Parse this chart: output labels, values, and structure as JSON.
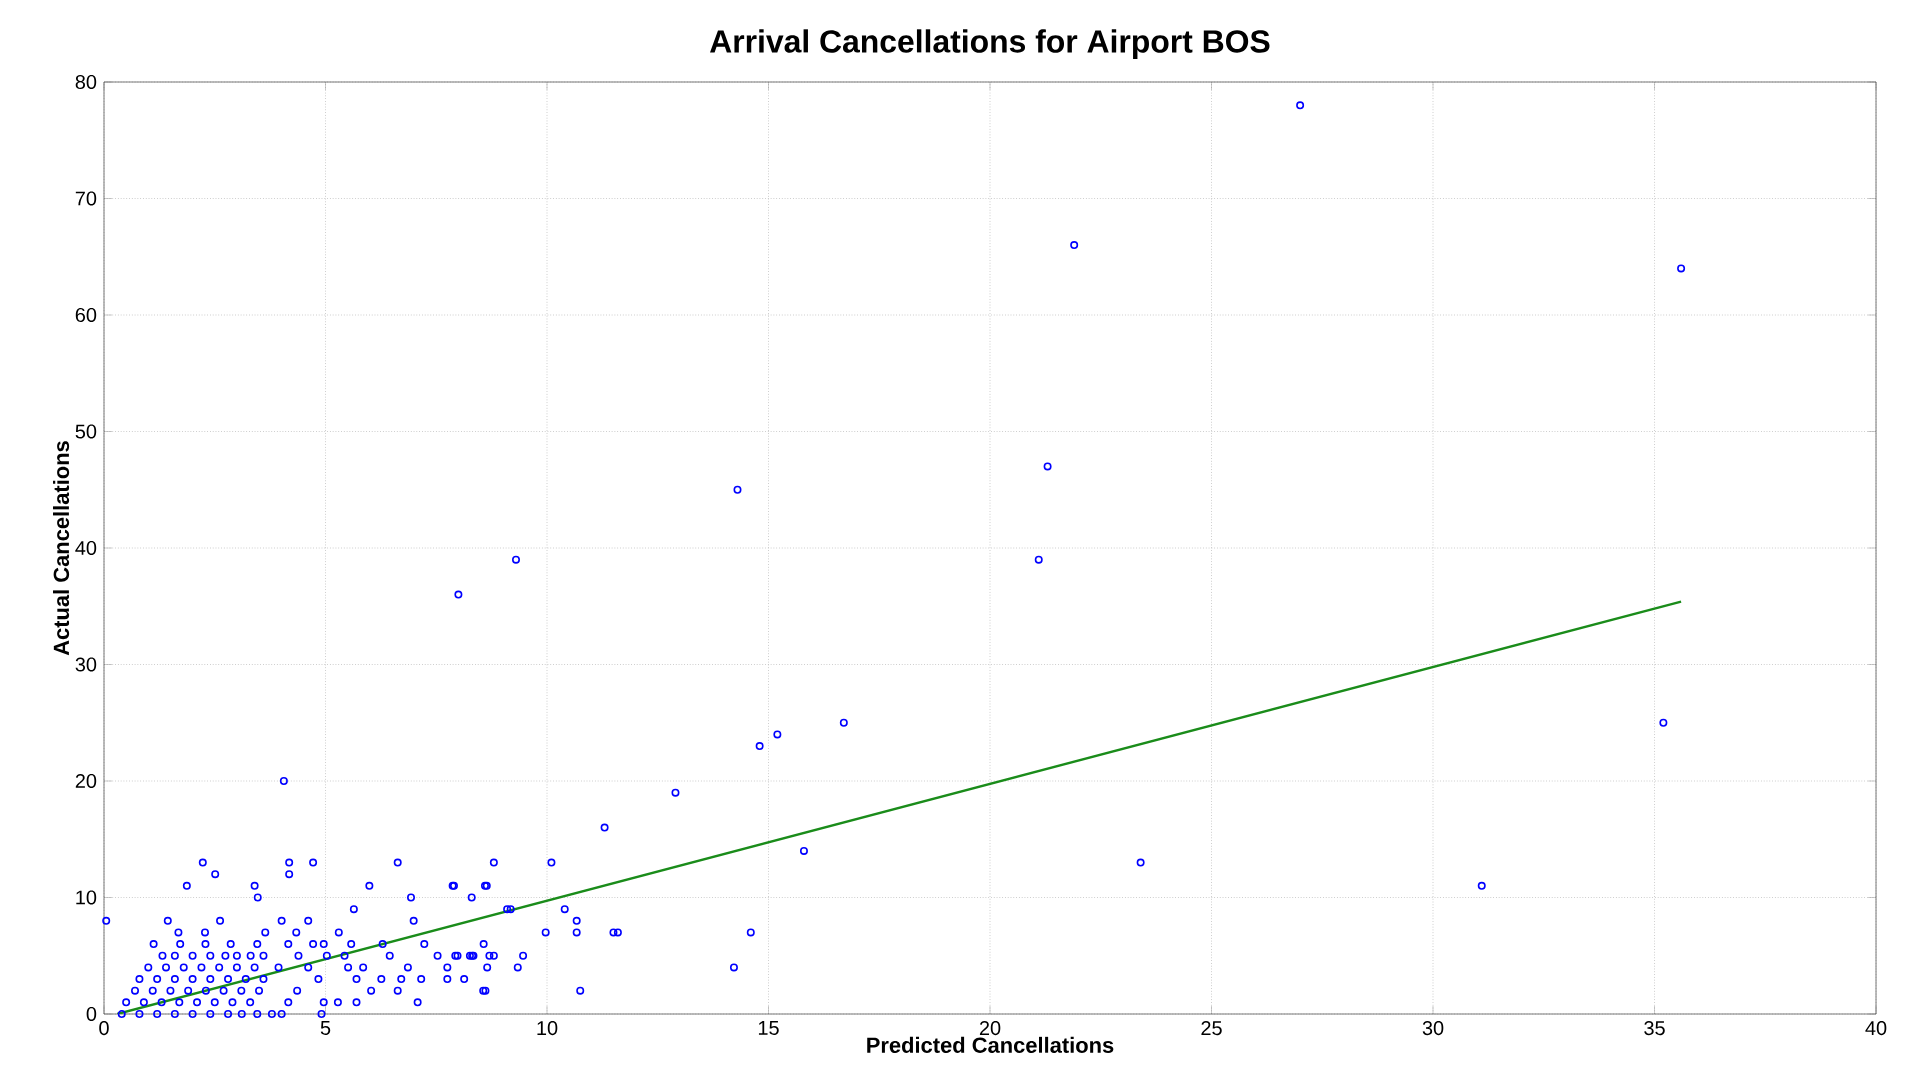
{
  "chart_data": {
    "type": "scatter",
    "title": "Arrival Cancellations for Airport BOS",
    "xlabel": "Predicted Cancellations",
    "ylabel": "Actual Cancellations",
    "xlim": [
      0,
      40
    ],
    "ylim": [
      0,
      80
    ],
    "xticks": [
      0,
      5,
      10,
      15,
      20,
      25,
      30,
      35,
      40
    ],
    "yticks": [
      0,
      10,
      20,
      30,
      40,
      50,
      60,
      70,
      80
    ],
    "grid": true,
    "series": [
      {
        "marker": "circle",
        "color": "#0000ff",
        "x": [
          27.0,
          21.9,
          35.6,
          21.3,
          21.1,
          35.2,
          23.4,
          31.1,
          14.3,
          9.3,
          8.0,
          16.7,
          15.2,
          14.8,
          12.9,
          11.3,
          15.8,
          8.8,
          10.1,
          8.6,
          8.3,
          9.1,
          10.4,
          10.67,
          10.67,
          9.97,
          11.5,
          11.6,
          14.6,
          8.57,
          7.93,
          8.26,
          8.34,
          8.7,
          8.8,
          9.46,
          9.34,
          14.22,
          8.56,
          10.75,
          7.9,
          4.06,
          0.05,
          2.23,
          2.51,
          1.87,
          3.4,
          3.47,
          4.18,
          4.18,
          4.72,
          6.63,
          5.99,
          5.64,
          6.93,
          6.99,
          7.87,
          8.64,
          9.18,
          1.44,
          2.62,
          4.01,
          4.61,
          1.68,
          2.28,
          3.64,
          4.34,
          5.3,
          1.12,
          1.72,
          2.29,
          2.86,
          3.46,
          4.16,
          4.72,
          4.96,
          5.58,
          6.29,
          7.23,
          1.32,
          2.74,
          3.31,
          4.39,
          5.03,
          5.43,
          6.45,
          7.53,
          7.98,
          8.31,
          3.94,
          4.61,
          5.51,
          5.85,
          6.86,
          7.75,
          8.65,
          4.84,
          5.7,
          6.26,
          6.71,
          7.16,
          7.75,
          8.13,
          4.36,
          6.03,
          6.63,
          8.61,
          4.16,
          4.96,
          5.28,
          5.7,
          7.08,
          3.11,
          3.46,
          3.79,
          4.01,
          4.91,
          0.4,
          0.8,
          1.2,
          1.6,
          2.0,
          2.4,
          2.8,
          0.5,
          0.9,
          1.3,
          1.7,
          2.1,
          2.5,
          2.9,
          3.3,
          0.7,
          1.1,
          1.5,
          1.9,
          2.3,
          2.7,
          3.1,
          3.5,
          0.8,
          1.2,
          1.6,
          2.0,
          2.4,
          2.8,
          3.2,
          3.6,
          1.0,
          1.4,
          1.8,
          2.2,
          2.6,
          3.0,
          3.4,
          1.6,
          2.0,
          2.4,
          3.0,
          3.6
        ],
        "values": [
          78,
          66,
          64,
          47,
          39,
          25,
          13,
          11,
          45,
          39,
          36,
          25,
          24,
          23,
          19,
          16,
          14,
          13,
          13,
          11,
          10,
          9,
          9,
          8,
          7,
          7,
          7,
          7,
          7,
          6,
          5,
          5,
          5,
          5,
          5,
          5,
          4,
          4,
          2,
          2,
          11,
          20,
          8,
          13,
          12,
          11,
          11,
          10,
          13,
          12,
          13,
          13,
          11,
          9,
          10,
          8,
          11,
          11,
          9,
          8,
          8,
          8,
          8,
          7,
          7,
          7,
          7,
          7,
          6,
          6,
          6,
          6,
          6,
          6,
          6,
          6,
          6,
          6,
          6,
          5,
          5,
          5,
          5,
          5,
          5,
          5,
          5,
          5,
          5,
          4,
          4,
          4,
          4,
          4,
          4,
          4,
          3,
          3,
          3,
          3,
          3,
          3,
          3,
          2,
          2,
          2,
          2,
          1,
          1,
          1,
          1,
          1,
          0,
          0,
          0,
          0,
          0,
          0,
          0,
          0,
          0,
          0,
          0,
          0,
          1,
          1,
          1,
          1,
          1,
          1,
          1,
          1,
          2,
          2,
          2,
          2,
          2,
          2,
          2,
          2,
          3,
          3,
          3,
          3,
          3,
          3,
          3,
          3,
          4,
          4,
          4,
          4,
          4,
          4,
          4,
          5,
          5,
          5,
          5,
          5
        ]
      },
      {
        "type": "line",
        "marker": "none",
        "color": "#1a8c1a",
        "x": [
          0.3,
          35.6
        ],
        "values": [
          0,
          35.4
        ]
      }
    ]
  }
}
